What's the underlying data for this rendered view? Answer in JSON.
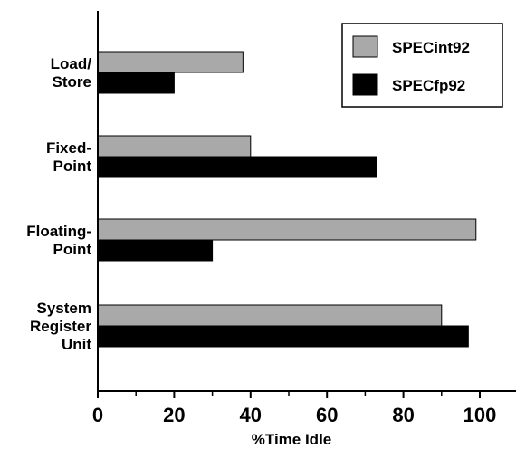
{
  "chart_data": {
    "type": "bar",
    "orientation": "horizontal",
    "categories": [
      [
        "Load/",
        "Store"
      ],
      [
        "Fixed-",
        "Point"
      ],
      [
        "Floating-",
        "Point"
      ],
      [
        "System",
        "Register",
        "Unit"
      ]
    ],
    "series": [
      {
        "name": "SPECint92",
        "color": "#a9a9a9",
        "values": [
          38,
          40,
          99,
          90
        ]
      },
      {
        "name": "SPECfp92",
        "color": "#000000",
        "values": [
          20,
          73,
          30,
          97
        ]
      }
    ],
    "xlabel": "%Time Idle",
    "xlim": [
      0,
      100
    ],
    "xticks": [
      0,
      20,
      40,
      60,
      80,
      100
    ],
    "legend_position": "top-right",
    "grid": false
  }
}
